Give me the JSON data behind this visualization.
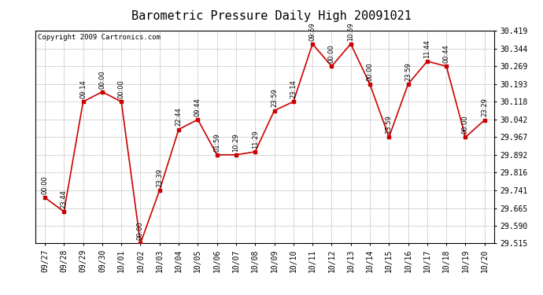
{
  "title": "Barometric Pressure Daily High 20091021",
  "copyright": "Copyright 2009 Cartronics.com",
  "x_labels": [
    "09/27",
    "09/28",
    "09/29",
    "09/30",
    "10/01",
    "10/02",
    "10/03",
    "10/04",
    "10/05",
    "10/06",
    "10/07",
    "10/08",
    "10/09",
    "10/10",
    "10/11",
    "10/12",
    "10/13",
    "10/14",
    "10/15",
    "10/16",
    "10/17",
    "10/18",
    "10/19",
    "10/20"
  ],
  "y_values": [
    29.71,
    29.65,
    30.118,
    30.16,
    30.118,
    29.515,
    29.741,
    30.0,
    30.042,
    29.892,
    29.892,
    29.905,
    30.08,
    30.118,
    30.364,
    30.269,
    30.364,
    30.193,
    29.967,
    30.193,
    30.29,
    30.269,
    29.967,
    30.04
  ],
  "point_labels": [
    "00:00",
    "23:44",
    "09:14",
    "00:00",
    "00:00",
    "00:00",
    "23:39",
    "22:44",
    "09:44",
    "01:59",
    "10:29",
    "11:29",
    "23:59",
    "23:14",
    "09:59",
    "00:00",
    "10:59",
    "00:00",
    "23:59",
    "23:59",
    "11:44",
    "00:44",
    "00:00",
    "23:29"
  ],
  "y_min": 29.515,
  "y_max": 30.419,
  "y_ticks": [
    29.515,
    29.59,
    29.665,
    29.741,
    29.816,
    29.892,
    29.967,
    30.042,
    30.118,
    30.193,
    30.269,
    30.344,
    30.419
  ],
  "line_color": "#cc0000",
  "marker_color": "#cc0000",
  "grid_color": "#c8c8c8",
  "background_color": "#ffffff",
  "title_fontsize": 11,
  "tick_fontsize": 7,
  "point_label_fontsize": 6,
  "copyright_fontsize": 6.5
}
